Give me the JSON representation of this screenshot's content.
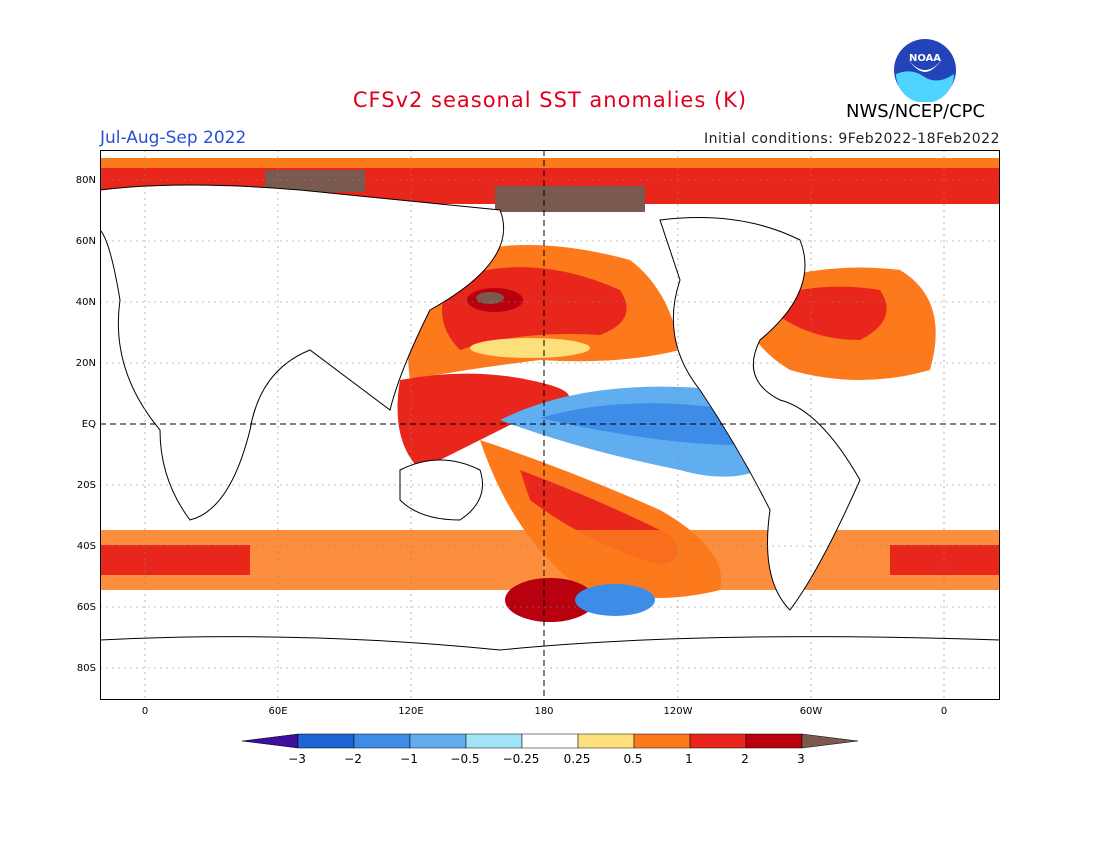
{
  "header": {
    "title": "CFSv2 seasonal SST anomalies (K)",
    "season": "Jul-Aug-Sep 2022",
    "initial_conditions": "Initial conditions: 9Feb2022-18Feb2022",
    "agency": "NWS/NCEP/CPC",
    "logo_text": "NOAA"
  },
  "map": {
    "lat_labels": [
      "80N",
      "60N",
      "40N",
      "20N",
      "EQ",
      "20S",
      "40S",
      "60S",
      "80S"
    ],
    "lon_labels": [
      "0",
      "60E",
      "120E",
      "180",
      "120W",
      "60W",
      "0"
    ],
    "colors": {
      "land": "#ffffff",
      "ice": "#7a5a4e",
      "cold2": "#1d64d4",
      "cold1": "#3c8ce8",
      "cold05": "#60aef0",
      "cold025": "#a0e4f6",
      "neutral": "#ffffff",
      "warm025": "#fde07c",
      "warm05": "#fd7a1c",
      "warm1": "#e8261c",
      "warm2": "#b8000e"
    }
  },
  "colorbar": {
    "labels": [
      "−3",
      "−2",
      "−1",
      "−0.5",
      "−0.25",
      "0.25",
      "0.5",
      "1",
      "2",
      "3"
    ],
    "colors": [
      "#3c0fa0",
      "#1d64d4",
      "#3c8ce8",
      "#60aef0",
      "#a0e4f6",
      "#ffffff",
      "#fde07c",
      "#fd7a1c",
      "#e8261c",
      "#b8000e",
      "#7a5a4e"
    ]
  }
}
